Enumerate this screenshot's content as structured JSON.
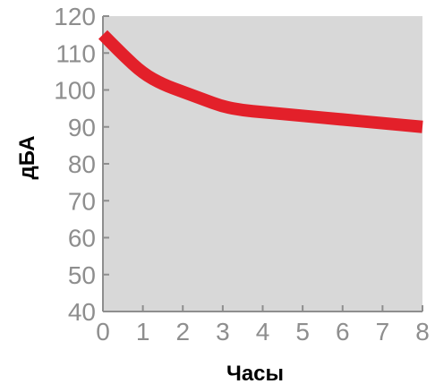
{
  "chart_data": {
    "type": "line",
    "title": "",
    "xlabel": "Часы",
    "ylabel": "дБА",
    "xlim": [
      0,
      8
    ],
    "ylim": [
      40,
      120
    ],
    "grid": false,
    "x_ticks": [
      "0",
      "1",
      "2",
      "3",
      "4",
      "5",
      "6",
      "7",
      "8"
    ],
    "y_ticks": [
      "120",
      "110",
      "100",
      "90",
      "80",
      "70",
      "60",
      "50",
      "40"
    ],
    "series": [
      {
        "x": [
          0,
          0.5,
          1,
          1.5,
          2,
          2.5,
          3,
          3.5,
          4,
          5,
          6,
          7,
          8
        ],
        "values": [
          115,
          109.5,
          104.5,
          101.5,
          99.5,
          97.5,
          95.5,
          94.5,
          94,
          93,
          92,
          91,
          90
        ]
      }
    ],
    "colors": {
      "plot_background": "#d8d8d8",
      "line": "#e3202a",
      "axis": "#8e8e8e",
      "tick_text": "#8e8e8e",
      "title_text": "#000000"
    }
  }
}
